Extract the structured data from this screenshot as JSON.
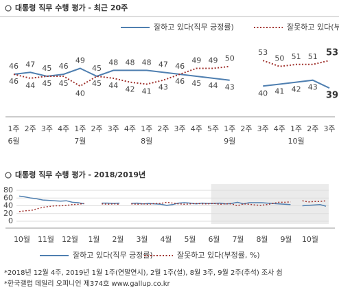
{
  "chart_data": [
    {
      "type": "line",
      "title": "대통령 직무 수행 평가 - 최근 20주",
      "categories": [
        "1주",
        "2주",
        "3주",
        "4주",
        "1주",
        "2주",
        "3주",
        "4주",
        "1주",
        "2주",
        "3주",
        "4주",
        "5주",
        "1주",
        "2주",
        "3주",
        "4주",
        "1주",
        "2주",
        "3주"
      ],
      "category_groups": [
        "6월",
        null,
        null,
        null,
        "7월",
        null,
        null,
        null,
        "8월",
        null,
        null,
        null,
        null,
        "9월",
        null,
        null,
        null,
        "10월",
        null,
        null
      ],
      "ylim": [
        30,
        60
      ],
      "series": [
        {
          "name": "잘하고 있다(직무 긍정률)",
          "color": "#4f7fb0",
          "dash": "solid",
          "values": [
            46,
            47,
            45,
            46,
            49,
            45,
            48,
            48,
            48,
            47,
            46,
            45,
            44,
            43,
            null,
            40,
            41,
            42,
            43,
            39
          ]
        },
        {
          "name": "잘못하고 있다(부정률, %)",
          "color": "#a0322d",
          "dash": "dotted",
          "values": [
            46,
            44,
            45,
            45,
            40,
            45,
            44,
            42,
            41,
            43,
            46,
            49,
            49,
            50,
            null,
            53,
            50,
            51,
            51,
            53
          ]
        }
      ]
    },
    {
      "type": "line",
      "title": "대통령 직무 수행 평가 - 2018/2019년",
      "x_labels": [
        "10월",
        "11월",
        "12월",
        "1월",
        "2월",
        "3월",
        "4월",
        "5월",
        "6월",
        "7월",
        "8월",
        "9월",
        "10월"
      ],
      "ylim": [
        0,
        80
      ],
      "yticks": [
        0,
        20,
        40,
        60,
        80
      ],
      "grid": true,
      "series": [
        {
          "name": "잘하고 있다(직무 긍정률)",
          "color": "#4f7fb0",
          "dash": "solid",
          "values": [
            65,
            63,
            60,
            58,
            55,
            54,
            53,
            52,
            53,
            49,
            48,
            45,
            null,
            null,
            47,
            47,
            46,
            47,
            null,
            46,
            47,
            45,
            46,
            45,
            44,
            41,
            43,
            47,
            48,
            47,
            45,
            47,
            46,
            46,
            47,
            45,
            46,
            49,
            45,
            48,
            48,
            48,
            47,
            46,
            45,
            44,
            43,
            null,
            40,
            41,
            42,
            43,
            39
          ]
        },
        {
          "name": "잘못하고 있다(부정률, %)",
          "color": "#a0322d",
          "dash": "dotted",
          "values": [
            25,
            27,
            28,
            32,
            36,
            38,
            40,
            40,
            41,
            43,
            44,
            46,
            null,
            null,
            45,
            44,
            45,
            44,
            null,
            45,
            44,
            45,
            44,
            46,
            46,
            49,
            47,
            45,
            44,
            45,
            46,
            45,
            45,
            46,
            44,
            45,
            45,
            40,
            45,
            44,
            42,
            41,
            43,
            46,
            49,
            49,
            50,
            null,
            53,
            50,
            51,
            51,
            53
          ]
        }
      ]
    }
  ],
  "notes": [
    "*2018년 12월 4주, 2019년 1월 1주(연말연시), 2월 1주(설), 8월 3주, 9월 2주(추석) 조사 쉼",
    "*한국갤럽 데일리 오피니언 제374호 www.gallup.co.kr"
  ]
}
